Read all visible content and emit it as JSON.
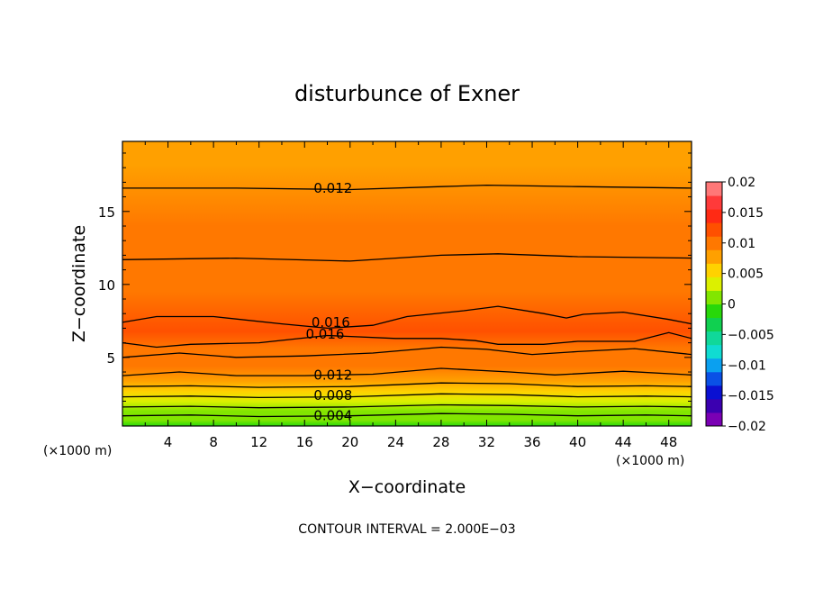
{
  "chart_data": {
    "type": "heatmap",
    "title": "disturbunce of Exner",
    "xlabel": "X−coordinate",
    "ylabel": "Z−coordinate",
    "x_unit_left": "(×1000 m)",
    "x_unit_right": "(×1000 m)",
    "footer": "CONTOUR INTERVAL = 2.000E−03",
    "xlim": [
      0,
      50
    ],
    "ylim": [
      0.3,
      19.8
    ],
    "x_ticks": [
      4,
      8,
      12,
      16,
      20,
      24,
      28,
      32,
      36,
      40,
      44,
      48
    ],
    "x_tick_labels": [
      "4",
      "8",
      "12",
      "16",
      "20",
      "24",
      "28",
      "32",
      "36",
      "40",
      "44",
      "48"
    ],
    "y_ticks": [
      5,
      10,
      15
    ],
    "y_tick_labels": [
      "5",
      "10",
      "15"
    ],
    "colorbar": {
      "levels": [
        -0.02,
        -0.015,
        -0.01,
        -0.005,
        0,
        0.005,
        0.01,
        0.015,
        0.02
      ],
      "tick_labels": [
        "0.02",
        "0.015",
        "0.01",
        "0.005",
        "0",
        "−0.005",
        "−0.01",
        "−0.015",
        "−0.02"
      ],
      "colors": [
        "#7a00b4",
        "#3b00b0",
        "#0a10d2",
        "#0a50e6",
        "#0aa0f0",
        "#10dcd2",
        "#10d89a",
        "#10d050",
        "#28d80a",
        "#82e600",
        "#dcf000",
        "#ffd200",
        "#ffa000",
        "#ff7800",
        "#ff5000",
        "#ff2a14",
        "#ff3a3a",
        "#ff7878"
      ]
    },
    "contour_labels": [
      {
        "x": 18.5,
        "z": 16.6,
        "text": "0.012"
      },
      {
        "x": 18.3,
        "z": 7.4,
        "text": "0.016"
      },
      {
        "x": 17.8,
        "z": 6.6,
        "text": "0.016"
      },
      {
        "x": 18.5,
        "z": 3.8,
        "text": "0.012"
      },
      {
        "x": 18.5,
        "z": 2.4,
        "text": "0.008"
      },
      {
        "x": 18.5,
        "z": 1.0,
        "text": "0.004"
      }
    ],
    "contours": [
      {
        "level": 0.004,
        "points": [
          [
            0,
            1.0
          ],
          [
            6,
            1.05
          ],
          [
            12,
            0.95
          ],
          [
            20,
            1.0
          ],
          [
            28,
            1.15
          ],
          [
            34,
            1.1
          ],
          [
            40,
            1.0
          ],
          [
            46,
            1.05
          ],
          [
            50,
            1.0
          ]
        ]
      },
      {
        "level": 0.006,
        "points": [
          [
            0,
            1.6
          ],
          [
            6,
            1.65
          ],
          [
            12,
            1.55
          ],
          [
            20,
            1.6
          ],
          [
            28,
            1.75
          ],
          [
            34,
            1.7
          ],
          [
            40,
            1.6
          ],
          [
            46,
            1.65
          ],
          [
            50,
            1.6
          ]
        ]
      },
      {
        "level": 0.008,
        "points": [
          [
            0,
            2.3
          ],
          [
            6,
            2.35
          ],
          [
            12,
            2.25
          ],
          [
            20,
            2.3
          ],
          [
            28,
            2.5
          ],
          [
            34,
            2.45
          ],
          [
            40,
            2.3
          ],
          [
            46,
            2.35
          ],
          [
            50,
            2.3
          ]
        ]
      },
      {
        "level": 0.01,
        "points": [
          [
            0,
            3.0
          ],
          [
            6,
            3.05
          ],
          [
            12,
            2.95
          ],
          [
            20,
            3.0
          ],
          [
            28,
            3.25
          ],
          [
            34,
            3.2
          ],
          [
            40,
            3.0
          ],
          [
            46,
            3.05
          ],
          [
            50,
            3.0
          ]
        ]
      },
      {
        "level": 0.012,
        "points": [
          [
            0,
            3.75
          ],
          [
            5,
            4.0
          ],
          [
            10,
            3.75
          ],
          [
            16,
            3.75
          ],
          [
            22,
            3.85
          ],
          [
            28,
            4.25
          ],
          [
            34,
            4.0
          ],
          [
            38,
            3.8
          ],
          [
            44,
            4.05
          ],
          [
            50,
            3.8
          ]
        ]
      },
      {
        "level": 0.014,
        "points": [
          [
            0,
            5.0
          ],
          [
            5,
            5.3
          ],
          [
            10,
            5.0
          ],
          [
            16,
            5.1
          ],
          [
            22,
            5.3
          ],
          [
            28,
            5.7
          ],
          [
            32,
            5.55
          ],
          [
            36,
            5.2
          ],
          [
            40,
            5.4
          ],
          [
            45,
            5.6
          ],
          [
            50,
            5.2
          ]
        ]
      },
      {
        "level": 0.016,
        "points": [
          [
            0,
            6.0
          ],
          [
            3,
            5.7
          ],
          [
            6,
            5.9
          ],
          [
            12,
            6.0
          ],
          [
            18,
            6.5
          ],
          [
            24,
            6.3
          ],
          [
            28,
            6.3
          ],
          [
            31,
            6.15
          ],
          [
            33,
            5.9
          ],
          [
            37,
            5.9
          ],
          [
            40,
            6.1
          ],
          [
            45,
            6.1
          ],
          [
            48,
            6.7
          ],
          [
            50,
            6.3
          ]
        ]
      },
      {
        "level": 0.016,
        "points": [
          [
            0,
            7.4
          ],
          [
            3,
            7.8
          ],
          [
            8,
            7.8
          ],
          [
            14,
            7.3
          ],
          [
            18,
            7.0
          ],
          [
            22,
            7.2
          ],
          [
            25,
            7.8
          ],
          [
            30,
            8.2
          ],
          [
            33,
            8.5
          ],
          [
            37,
            8.0
          ],
          [
            39,
            7.7
          ],
          [
            40.5,
            7.95
          ],
          [
            44,
            8.1
          ],
          [
            48,
            7.6
          ],
          [
            50,
            7.3
          ]
        ]
      },
      {
        "level": 0.014,
        "points": [
          [
            0,
            11.7
          ],
          [
            10,
            11.8
          ],
          [
            20,
            11.6
          ],
          [
            28,
            12.0
          ],
          [
            33,
            12.1
          ],
          [
            40,
            11.9
          ],
          [
            50,
            11.8
          ]
        ]
      },
      {
        "level": 0.012,
        "points": [
          [
            0,
            16.6
          ],
          [
            10,
            16.6
          ],
          [
            20,
            16.5
          ],
          [
            28,
            16.7
          ],
          [
            32,
            16.8
          ],
          [
            40,
            16.7
          ],
          [
            50,
            16.6
          ]
        ]
      }
    ],
    "bands": [
      {
        "z": 0.3,
        "value": 0.001
      },
      {
        "z": 0.7,
        "value": 0.003
      },
      {
        "z": 1.3,
        "value": 0.005
      },
      {
        "z": 2.0,
        "value": 0.007
      },
      {
        "z": 2.65,
        "value": 0.009
      },
      {
        "z": 3.4,
        "value": 0.011
      },
      {
        "z": 4.4,
        "value": 0.013
      },
      {
        "z": 5.6,
        "value": 0.015
      },
      {
        "z": 6.8,
        "value": 0.017
      },
      {
        "z": 9.5,
        "value": 0.015
      },
      {
        "z": 14.0,
        "value": 0.013
      },
      {
        "z": 18.2,
        "value": 0.011
      }
    ]
  }
}
